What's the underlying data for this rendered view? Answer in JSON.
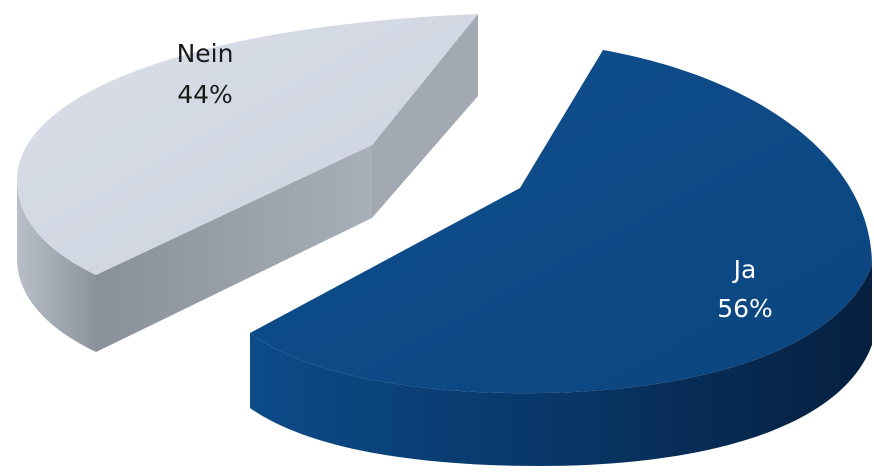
{
  "chart_data": {
    "type": "pie",
    "style": "3d-exploded",
    "title": "",
    "slices": [
      {
        "name": "Ja",
        "value": 56,
        "label": "56%",
        "color": "#0d4a86",
        "side_color": "#0a3566",
        "label_color": "#ffffff"
      },
      {
        "name": "Nein",
        "value": 44,
        "label": "44%",
        "color": "#d4d9e4",
        "side_color": "#9ea4ad",
        "label_color": "#1a1a1a"
      }
    ]
  }
}
